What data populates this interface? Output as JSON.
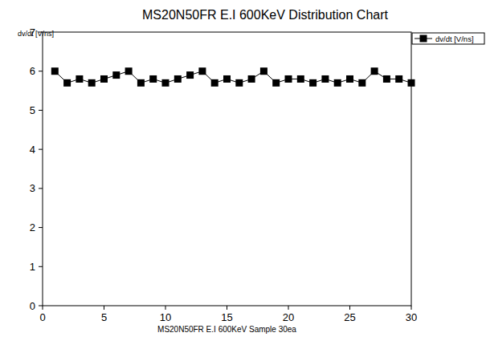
{
  "chart_data": {
    "type": "line",
    "title": "MS20N50FR E.I 600KeV Distribution Chart",
    "x_label": "MS20N50FR E.I 600KeV Sample 30ea",
    "y_label": "dv/dt [V/ns]",
    "x": [
      1,
      2,
      3,
      4,
      5,
      6,
      7,
      8,
      9,
      10,
      11,
      12,
      13,
      14,
      15,
      16,
      17,
      18,
      19,
      20,
      21,
      22,
      23,
      24,
      25,
      26,
      27,
      28,
      29,
      30
    ],
    "series": [
      {
        "name": "dv/dt [V/ns]",
        "color": "#000000",
        "marker": "square",
        "line_style": "solid",
        "values": [
          6.0,
          5.7,
          5.8,
          5.7,
          5.8,
          5.9,
          6.0,
          5.7,
          5.8,
          5.7,
          5.8,
          5.9,
          6.0,
          5.7,
          5.8,
          5.7,
          5.8,
          6.0,
          5.7,
          5.8,
          5.8,
          5.7,
          5.8,
          5.7,
          5.8,
          5.7,
          6.0,
          5.8,
          5.8,
          5.7
        ]
      }
    ],
    "xlim": [
      0,
      30
    ],
    "xticks": [
      0,
      5,
      10,
      15,
      20,
      25,
      30
    ],
    "ylim": [
      0,
      7
    ],
    "yticks": [
      0,
      1,
      2,
      3,
      4,
      5,
      6,
      7
    ],
    "grid": false,
    "legend": "right"
  }
}
